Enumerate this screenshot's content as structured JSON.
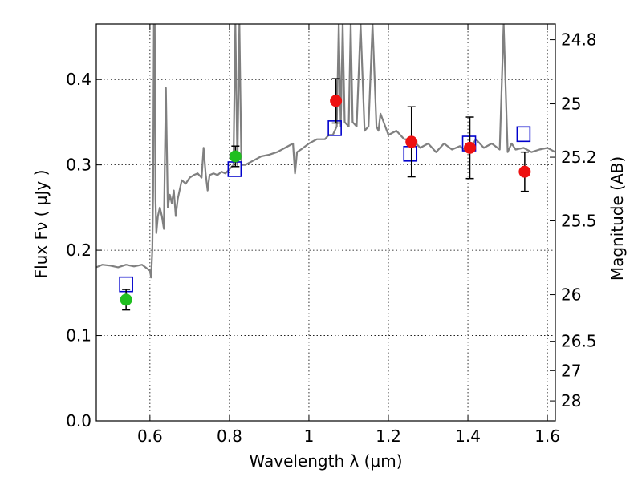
{
  "chart_data": {
    "type": "scatter",
    "xlabel": "Wavelength  λ (μm)",
    "ylabel": "Flux  Fν  ( μJy )",
    "ylabel_right": "Magnitude (AB)",
    "xlim": [
      0.465,
      1.62
    ],
    "ylim": [
      0.0,
      0.465
    ],
    "grid": true,
    "x_ticks": [
      0.6,
      0.8,
      1.0,
      1.2,
      1.4,
      1.6
    ],
    "x_tick_labels": [
      "0.6",
      "0.8",
      "1",
      "1.2",
      "1.4",
      "1.6"
    ],
    "y_ticks": [
      0.0,
      0.1,
      0.2,
      0.3,
      0.4
    ],
    "y_tick_labels": [
      "0.0",
      "0.1",
      "0.2",
      "0.3",
      "0.4"
    ],
    "mag_ticks": [
      {
        "label": "24.8",
        "flux": 0.4466
      },
      {
        "label": "25",
        "flux": 0.3715
      },
      {
        "label": "25.2",
        "flux": 0.309
      },
      {
        "label": "25.5",
        "flux": 0.2344
      },
      {
        "label": "26",
        "flux": 0.1479
      },
      {
        "label": "26.5",
        "flux": 0.0933
      },
      {
        "label": "27",
        "flux": 0.0589
      },
      {
        "label": "28",
        "flux": 0.0234
      }
    ],
    "colors": {
      "spectrum": "#808080",
      "green_points": "#1fbf1f",
      "red_points": "#ee1111",
      "model_boxes": "#0000cc",
      "grid": "#000000"
    },
    "series": [
      {
        "name": "model spectrum",
        "kind": "line",
        "x": [
          0.465,
          0.48,
          0.5,
          0.52,
          0.54,
          0.56,
          0.58,
          0.6,
          0.603,
          0.606,
          0.608,
          0.61,
          0.612,
          0.614,
          0.616,
          0.62,
          0.625,
          0.63,
          0.635,
          0.64,
          0.645,
          0.65,
          0.655,
          0.66,
          0.665,
          0.67,
          0.68,
          0.69,
          0.7,
          0.71,
          0.72,
          0.73,
          0.735,
          0.74,
          0.745,
          0.75,
          0.76,
          0.77,
          0.78,
          0.79,
          0.8,
          0.81,
          0.815,
          0.82,
          0.825,
          0.83,
          0.84,
          0.86,
          0.88,
          0.9,
          0.92,
          0.94,
          0.96,
          0.965,
          0.97,
          0.98,
          1.0,
          1.02,
          1.04,
          1.05,
          1.06,
          1.07,
          1.075,
          1.08,
          1.085,
          1.09,
          1.1,
          1.105,
          1.11,
          1.12,
          1.13,
          1.14,
          1.15,
          1.16,
          1.17,
          1.175,
          1.18,
          1.2,
          1.22,
          1.24,
          1.26,
          1.28,
          1.3,
          1.32,
          1.34,
          1.36,
          1.38,
          1.4,
          1.42,
          1.44,
          1.46,
          1.48,
          1.49,
          1.5,
          1.51,
          1.52,
          1.54,
          1.56,
          1.58,
          1.6,
          1.62
        ],
        "y": [
          0.18,
          0.183,
          0.182,
          0.18,
          0.183,
          0.181,
          0.183,
          0.176,
          0.168,
          0.2,
          0.27,
          0.465,
          0.465,
          0.26,
          0.22,
          0.24,
          0.25,
          0.24,
          0.225,
          0.39,
          0.25,
          0.265,
          0.255,
          0.27,
          0.24,
          0.26,
          0.282,
          0.278,
          0.285,
          0.288,
          0.29,
          0.285,
          0.32,
          0.29,
          0.27,
          0.288,
          0.29,
          0.288,
          0.292,
          0.29,
          0.295,
          0.3,
          0.465,
          0.3,
          0.465,
          0.3,
          0.3,
          0.305,
          0.31,
          0.312,
          0.315,
          0.32,
          0.325,
          0.29,
          0.315,
          0.318,
          0.325,
          0.33,
          0.33,
          0.335,
          0.335,
          0.345,
          0.465,
          0.345,
          0.465,
          0.35,
          0.345,
          0.465,
          0.35,
          0.345,
          0.465,
          0.34,
          0.345,
          0.465,
          0.345,
          0.34,
          0.36,
          0.335,
          0.34,
          0.33,
          0.33,
          0.32,
          0.325,
          0.315,
          0.325,
          0.318,
          0.322,
          0.315,
          0.33,
          0.32,
          0.325,
          0.318,
          0.465,
          0.315,
          0.325,
          0.318,
          0.32,
          0.315,
          0.318,
          0.32,
          0.315
        ]
      },
      {
        "name": "green photometry",
        "kind": "points_with_errors",
        "x": [
          0.54,
          0.815
        ],
        "y": [
          0.142,
          0.31
        ],
        "yerr": [
          0.012,
          0.012
        ]
      },
      {
        "name": "red photometry",
        "kind": "points_with_errors",
        "x": [
          1.068,
          1.258,
          1.405,
          1.543
        ],
        "y": [
          0.375,
          0.327,
          0.32,
          0.292
        ],
        "yerr": [
          0.026,
          0.041,
          0.036,
          0.023
        ]
      },
      {
        "name": "model photometry",
        "kind": "open_squares",
        "x": [
          0.54,
          0.813,
          1.065,
          1.255,
          1.403,
          1.54
        ],
        "y": [
          0.16,
          0.295,
          0.343,
          0.313,
          0.325,
          0.336
        ]
      }
    ]
  }
}
